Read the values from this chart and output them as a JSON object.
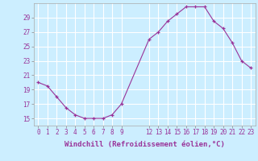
{
  "x": [
    0,
    1,
    2,
    3,
    4,
    5,
    6,
    7,
    8,
    9,
    12,
    13,
    14,
    15,
    16,
    17,
    18,
    19,
    20,
    21,
    22,
    23
  ],
  "y": [
    20.0,
    19.5,
    18.0,
    16.5,
    15.5,
    15.0,
    15.0,
    15.0,
    15.5,
    17.0,
    26.0,
    27.0,
    28.5,
    29.5,
    30.5,
    30.5,
    30.5,
    28.5,
    27.5,
    25.5,
    23.0,
    22.0
  ],
  "line_color": "#993399",
  "marker": "+",
  "bg_color": "#cceeff",
  "grid_color": "#ffffff",
  "axis_color": "#993399",
  "xlabel": "Windchill (Refroidissement éolien,°C)",
  "yticks": [
    15,
    17,
    19,
    21,
    23,
    25,
    27,
    29
  ],
  "xlim": [
    -0.5,
    23.5
  ],
  "ylim": [
    14.0,
    31.0
  ],
  "tick_fontsize": 5.5,
  "label_fontsize": 6.5,
  "figwidth": 3.2,
  "figheight": 2.0,
  "dpi": 100
}
